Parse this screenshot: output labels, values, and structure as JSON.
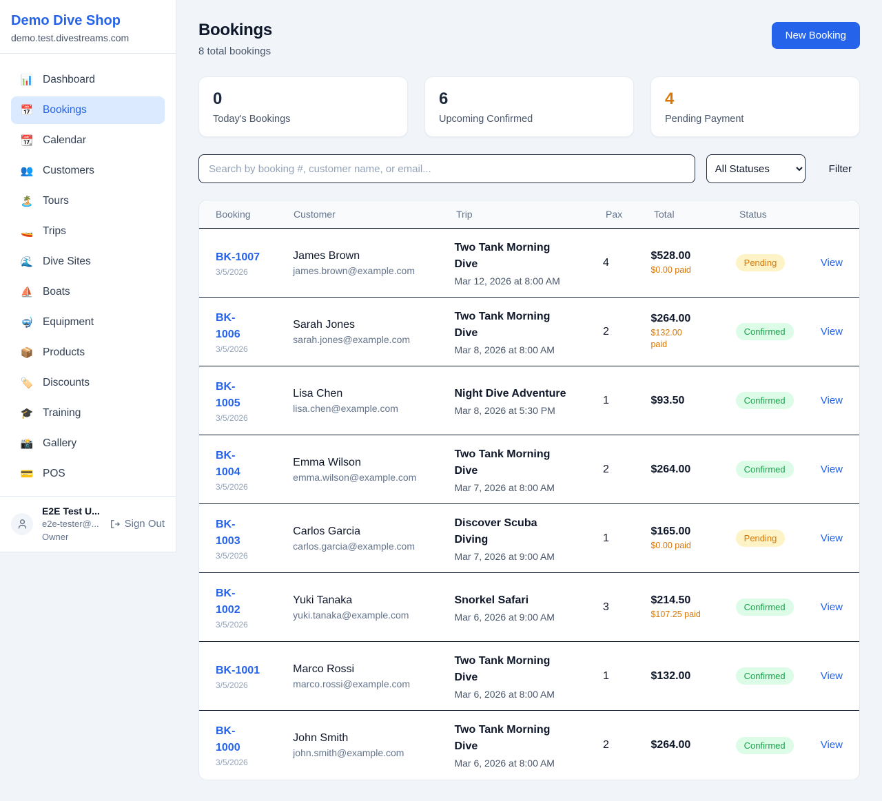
{
  "sidebar": {
    "brand": {
      "name": "Demo Dive Shop",
      "domain": "demo.test.divestreams.com"
    },
    "items": [
      {
        "icon": "📊",
        "icon_name": "bar-chart-icon",
        "label": "Dashboard",
        "active": false
      },
      {
        "icon": "📅",
        "icon_name": "calendar-icon",
        "label": "Bookings",
        "active": true
      },
      {
        "icon": "📆",
        "icon_name": "tear-off-calendar-icon",
        "label": "Calendar",
        "active": false
      },
      {
        "icon": "👥",
        "icon_name": "people-icon",
        "label": "Customers",
        "active": false
      },
      {
        "icon": "🏝️",
        "icon_name": "island-icon",
        "label": "Tours",
        "active": false
      },
      {
        "icon": "🚤",
        "icon_name": "speedboat-icon",
        "label": "Trips",
        "active": false
      },
      {
        "icon": "🌊",
        "icon_name": "wave-icon",
        "label": "Dive Sites",
        "active": false
      },
      {
        "icon": "⛵",
        "icon_name": "sailboat-icon",
        "label": "Boats",
        "active": false
      },
      {
        "icon": "🤿",
        "icon_name": "diving-mask-icon",
        "label": "Equipment",
        "active": false
      },
      {
        "icon": "📦",
        "icon_name": "package-icon",
        "label": "Products",
        "active": false
      },
      {
        "icon": "🏷️",
        "icon_name": "tag-icon",
        "label": "Discounts",
        "active": false
      },
      {
        "icon": "🎓",
        "icon_name": "graduation-cap-icon",
        "label": "Training",
        "active": false
      },
      {
        "icon": "📸",
        "icon_name": "camera-icon",
        "label": "Gallery",
        "active": false
      },
      {
        "icon": "💳",
        "icon_name": "credit-card-icon",
        "label": "POS",
        "active": false
      }
    ],
    "user": {
      "name": "E2E Test U...",
      "email": "e2e-tester@...",
      "role": "Owner",
      "sign_out_label": "Sign Out"
    }
  },
  "header": {
    "title": "Bookings",
    "subtitle": "8 total bookings",
    "new_booking_label": "New Booking"
  },
  "stats": [
    {
      "value": "0",
      "label": "Today's Bookings",
      "value_color": "#1e293b"
    },
    {
      "value": "6",
      "label": "Upcoming Confirmed",
      "value_color": "#1e293b"
    },
    {
      "value": "4",
      "label": "Pending Payment",
      "value_color": "#d97706"
    }
  ],
  "filters": {
    "search_placeholder": "Search by booking #, customer name, or email...",
    "status_selected": "All Statuses",
    "filter_label": "Filter"
  },
  "table": {
    "columns": [
      "Booking",
      "Customer",
      "Trip",
      "Pax",
      "Total",
      "Status"
    ],
    "action_label": "View",
    "rows": [
      {
        "number_lines": [
          "BK-1007"
        ],
        "date": "3/5/2026",
        "customer": "James Brown",
        "email": "james.brown@example.com",
        "trip_lines": [
          "Two Tank Morning",
          "Dive"
        ],
        "trip_datetime": "Mar 12, 2026 at 8:00 AM",
        "pax": "4",
        "total": "$528.00",
        "paid_lines": [
          "$0.00 paid"
        ],
        "status": "Pending"
      },
      {
        "number_lines": [
          "BK-",
          "1006"
        ],
        "date": "3/5/2026",
        "customer": "Sarah Jones",
        "email": "sarah.jones@example.com",
        "trip_lines": [
          "Two Tank Morning",
          "Dive"
        ],
        "trip_datetime": "Mar 8, 2026 at 8:00 AM",
        "pax": "2",
        "total": "$264.00",
        "paid_lines": [
          "$132.00",
          "paid"
        ],
        "status": "Confirmed"
      },
      {
        "number_lines": [
          "BK-",
          "1005"
        ],
        "date": "3/5/2026",
        "customer": "Lisa Chen",
        "email": "lisa.chen@example.com",
        "trip_lines": [
          "Night Dive Adventure"
        ],
        "trip_datetime": "Mar 8, 2026 at 5:30 PM",
        "pax": "1",
        "total": "$93.50",
        "paid_lines": [],
        "status": "Confirmed"
      },
      {
        "number_lines": [
          "BK-",
          "1004"
        ],
        "date": "3/5/2026",
        "customer": "Emma Wilson",
        "email": "emma.wilson@example.com",
        "trip_lines": [
          "Two Tank Morning",
          "Dive"
        ],
        "trip_datetime": "Mar 7, 2026 at 8:00 AM",
        "pax": "2",
        "total": "$264.00",
        "paid_lines": [],
        "status": "Confirmed"
      },
      {
        "number_lines": [
          "BK-",
          "1003"
        ],
        "date": "3/5/2026",
        "customer": "Carlos Garcia",
        "email": "carlos.garcia@example.com",
        "trip_lines": [
          "Discover Scuba",
          "Diving"
        ],
        "trip_datetime": "Mar 7, 2026 at 9:00 AM",
        "pax": "1",
        "total": "$165.00",
        "paid_lines": [
          "$0.00 paid"
        ],
        "status": "Pending"
      },
      {
        "number_lines": [
          "BK-",
          "1002"
        ],
        "date": "3/5/2026",
        "customer": "Yuki Tanaka",
        "email": "yuki.tanaka@example.com",
        "trip_lines": [
          "Snorkel Safari"
        ],
        "trip_datetime": "Mar 6, 2026 at 9:00 AM",
        "pax": "3",
        "total": "$214.50",
        "paid_lines": [
          "$107.25 paid"
        ],
        "status": "Confirmed"
      },
      {
        "number_lines": [
          "BK-1001"
        ],
        "date": "3/5/2026",
        "customer": "Marco Rossi",
        "email": "marco.rossi@example.com",
        "trip_lines": [
          "Two Tank Morning",
          "Dive"
        ],
        "trip_datetime": "Mar 6, 2026 at 8:00 AM",
        "pax": "1",
        "total": "$132.00",
        "paid_lines": [],
        "status": "Confirmed"
      },
      {
        "number_lines": [
          "BK-",
          "1000"
        ],
        "date": "3/5/2026",
        "customer": "John Smith",
        "email": "john.smith@example.com",
        "trip_lines": [
          "Two Tank Morning",
          "Dive"
        ],
        "trip_datetime": "Mar 6, 2026 at 8:00 AM",
        "pax": "2",
        "total": "$264.00",
        "paid_lines": [],
        "status": "Confirmed"
      }
    ]
  },
  "colors": {
    "accent_blue": "#2563eb",
    "pending_text": "#d97706",
    "pending_bg": "#fef3c7",
    "confirmed_text": "#16a34a",
    "confirmed_bg": "#dcfce7",
    "page_bg": "#f1f5f9",
    "row_divider": "#0f172a"
  }
}
